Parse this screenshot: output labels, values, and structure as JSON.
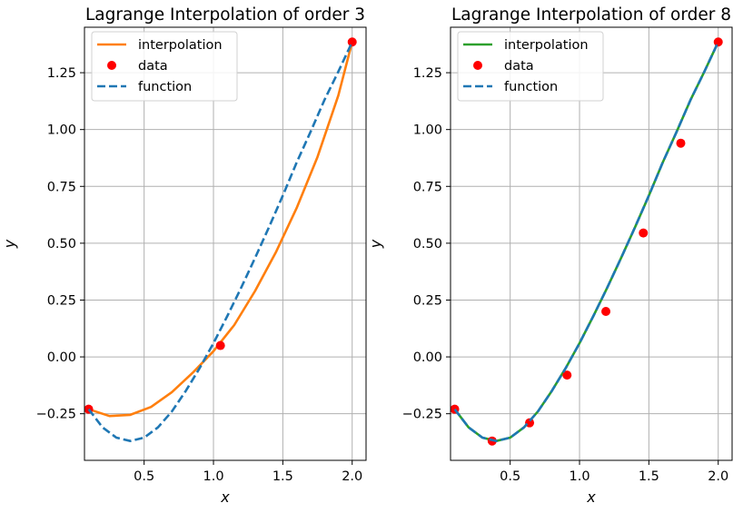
{
  "chart_data": [
    {
      "type": "line",
      "title": "Lagrange Interpolation of order 3",
      "xlabel": "x",
      "ylabel": "y",
      "xlim": [
        0.07,
        2.1
      ],
      "ylim": [
        -0.455,
        1.45
      ],
      "xticks": [
        0.5,
        1.0,
        1.5,
        2.0
      ],
      "xtick_labels": [
        "0.5",
        "1.0",
        "1.5",
        "2.0"
      ],
      "yticks": [
        -0.25,
        0.0,
        0.25,
        0.5,
        0.75,
        1.0,
        1.25
      ],
      "ytick_labels": [
        "−0.25",
        "0.00",
        "0.25",
        "0.50",
        "0.75",
        "1.00",
        "1.25"
      ],
      "grid": true,
      "legend": "top-left",
      "series": [
        {
          "name": "interpolation",
          "style": "solid",
          "color": "#ff7f0e",
          "x": [
            0.1,
            0.25,
            0.4,
            0.55,
            0.7,
            0.85,
            1.0,
            1.15,
            1.3,
            1.45,
            1.6,
            1.75,
            1.9,
            2.0
          ],
          "y": [
            -0.23,
            -0.26,
            -0.255,
            -0.22,
            -0.155,
            -0.07,
            0.025,
            0.14,
            0.29,
            0.46,
            0.655,
            0.88,
            1.15,
            1.385
          ]
        },
        {
          "name": "data",
          "style": "markers",
          "color": "#ff0000",
          "x": [
            0.1,
            1.05,
            2.0
          ],
          "y": [
            -0.23,
            0.05,
            1.385
          ]
        },
        {
          "name": "function",
          "style": "dashed",
          "color": "#1f77b4",
          "x": [
            0.1,
            0.2,
            0.3,
            0.4,
            0.5,
            0.6,
            0.7,
            0.8,
            0.9,
            1.0,
            1.1,
            1.2,
            1.3,
            1.4,
            1.5,
            1.6,
            1.7,
            1.8,
            1.9,
            2.0
          ],
          "y": [
            -0.23,
            -0.31,
            -0.355,
            -0.37,
            -0.355,
            -0.31,
            -0.24,
            -0.15,
            -0.05,
            0.06,
            0.18,
            0.305,
            0.435,
            0.57,
            0.71,
            0.855,
            0.99,
            1.13,
            1.255,
            1.385
          ]
        }
      ]
    },
    {
      "type": "line",
      "title": "Lagrange Interpolation of order 8",
      "xlabel": "x",
      "ylabel": "y",
      "xlim": [
        0.07,
        2.1
      ],
      "ylim": [
        -0.455,
        1.45
      ],
      "xticks": [
        0.5,
        1.0,
        1.5,
        2.0
      ],
      "xtick_labels": [
        "0.5",
        "1.0",
        "1.5",
        "2.0"
      ],
      "yticks": [
        -0.25,
        0.0,
        0.25,
        0.5,
        0.75,
        1.0,
        1.25
      ],
      "ytick_labels": [
        "−0.25",
        "0.00",
        "0.25",
        "0.50",
        "0.75",
        "1.00",
        "1.25"
      ],
      "grid": true,
      "legend": "top-left",
      "series": [
        {
          "name": "interpolation",
          "style": "solid",
          "color": "#2ca02c",
          "x": [
            0.1,
            0.2,
            0.3,
            0.4,
            0.5,
            0.6,
            0.7,
            0.8,
            0.9,
            1.0,
            1.1,
            1.2,
            1.3,
            1.4,
            1.5,
            1.6,
            1.7,
            1.8,
            1.9,
            2.0
          ],
          "y": [
            -0.23,
            -0.31,
            -0.355,
            -0.37,
            -0.355,
            -0.31,
            -0.24,
            -0.15,
            -0.05,
            0.06,
            0.18,
            0.305,
            0.435,
            0.57,
            0.71,
            0.855,
            0.99,
            1.13,
            1.255,
            1.385
          ]
        },
        {
          "name": "data",
          "style": "markers",
          "color": "#ff0000",
          "x": [
            0.1,
            0.37,
            0.64,
            0.91,
            1.19,
            1.46,
            1.73,
            2.0
          ],
          "y": [
            -0.23,
            -0.37,
            -0.29,
            -0.08,
            0.2,
            0.545,
            0.94,
            1.385
          ]
        },
        {
          "name": "function",
          "style": "dashed",
          "color": "#1f77b4",
          "x": [
            0.1,
            0.2,
            0.3,
            0.4,
            0.5,
            0.6,
            0.7,
            0.8,
            0.9,
            1.0,
            1.1,
            1.2,
            1.3,
            1.4,
            1.5,
            1.6,
            1.7,
            1.8,
            1.9,
            2.0
          ],
          "y": [
            -0.23,
            -0.31,
            -0.355,
            -0.37,
            -0.355,
            -0.31,
            -0.24,
            -0.15,
            -0.05,
            0.06,
            0.18,
            0.305,
            0.435,
            0.57,
            0.71,
            0.855,
            0.99,
            1.13,
            1.255,
            1.385
          ]
        }
      ]
    }
  ]
}
